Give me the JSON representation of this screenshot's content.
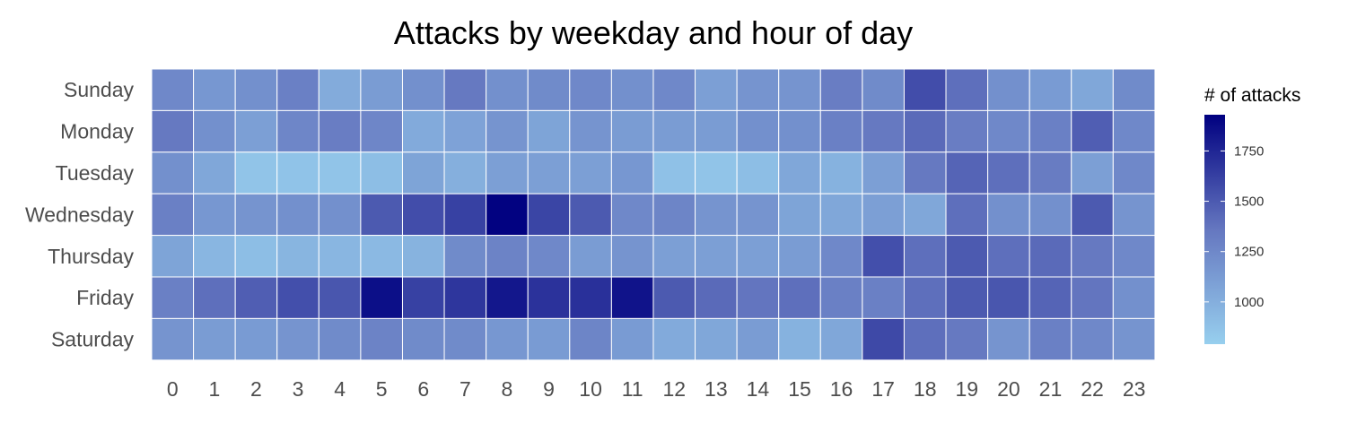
{
  "chart_data": {
    "type": "heatmap",
    "title": "Attacks by weekday and hour of day",
    "xlabel": "",
    "ylabel": "",
    "x": [
      "0",
      "1",
      "2",
      "3",
      "4",
      "5",
      "6",
      "7",
      "8",
      "9",
      "10",
      "11",
      "12",
      "13",
      "14",
      "15",
      "16",
      "17",
      "18",
      "19",
      "20",
      "21",
      "22",
      "23"
    ],
    "y": [
      "Sunday",
      "Monday",
      "Tuesday",
      "Wednesday",
      "Thursday",
      "Friday",
      "Saturday"
    ],
    "values": [
      [
        1250,
        1150,
        1200,
        1300,
        1020,
        1120,
        1200,
        1350,
        1200,
        1230,
        1250,
        1200,
        1250,
        1100,
        1170,
        1170,
        1320,
        1230,
        1560,
        1400,
        1200,
        1130,
        1050,
        1230
      ],
      [
        1350,
        1200,
        1100,
        1260,
        1320,
        1260,
        1030,
        1080,
        1170,
        1070,
        1170,
        1120,
        1120,
        1120,
        1200,
        1200,
        1300,
        1350,
        1420,
        1320,
        1250,
        1300,
        1480,
        1250
      ],
      [
        1200,
        1050,
        860,
        870,
        860,
        900,
        1070,
        1000,
        1100,
        1100,
        1100,
        1150,
        880,
        860,
        900,
        1050,
        980,
        1100,
        1350,
        1450,
        1400,
        1330,
        1100,
        1250
      ],
      [
        1300,
        1150,
        1170,
        1200,
        1200,
        1500,
        1560,
        1620,
        1920,
        1600,
        1500,
        1250,
        1270,
        1170,
        1170,
        1070,
        1050,
        1100,
        1050,
        1400,
        1200,
        1200,
        1500,
        1170
      ],
      [
        1070,
        950,
        900,
        960,
        950,
        930,
        970,
        1230,
        1280,
        1250,
        1120,
        1170,
        1100,
        1100,
        1100,
        1120,
        1250,
        1550,
        1400,
        1500,
        1400,
        1420,
        1350,
        1250
      ],
      [
        1300,
        1400,
        1480,
        1550,
        1520,
        1860,
        1620,
        1670,
        1820,
        1690,
        1700,
        1840,
        1500,
        1420,
        1370,
        1400,
        1300,
        1300,
        1400,
        1500,
        1520,
        1450,
        1370,
        1200
      ],
      [
        1170,
        1120,
        1130,
        1170,
        1230,
        1280,
        1230,
        1230,
        1150,
        1130,
        1270,
        1130,
        1030,
        1050,
        1120,
        980,
        1050,
        1580,
        1400,
        1350,
        1170,
        1300,
        1250,
        1170
      ]
    ],
    "legend": {
      "title": "# of attacks",
      "ticks": [
        1000,
        1250,
        1500,
        1750
      ],
      "range": [
        790,
        1930
      ],
      "position": "right"
    },
    "colors": {
      "low": "#97cfee",
      "mid": "#6577c0",
      "high": "#000080",
      "cell_border": "#ffffff"
    },
    "grid": false
  }
}
